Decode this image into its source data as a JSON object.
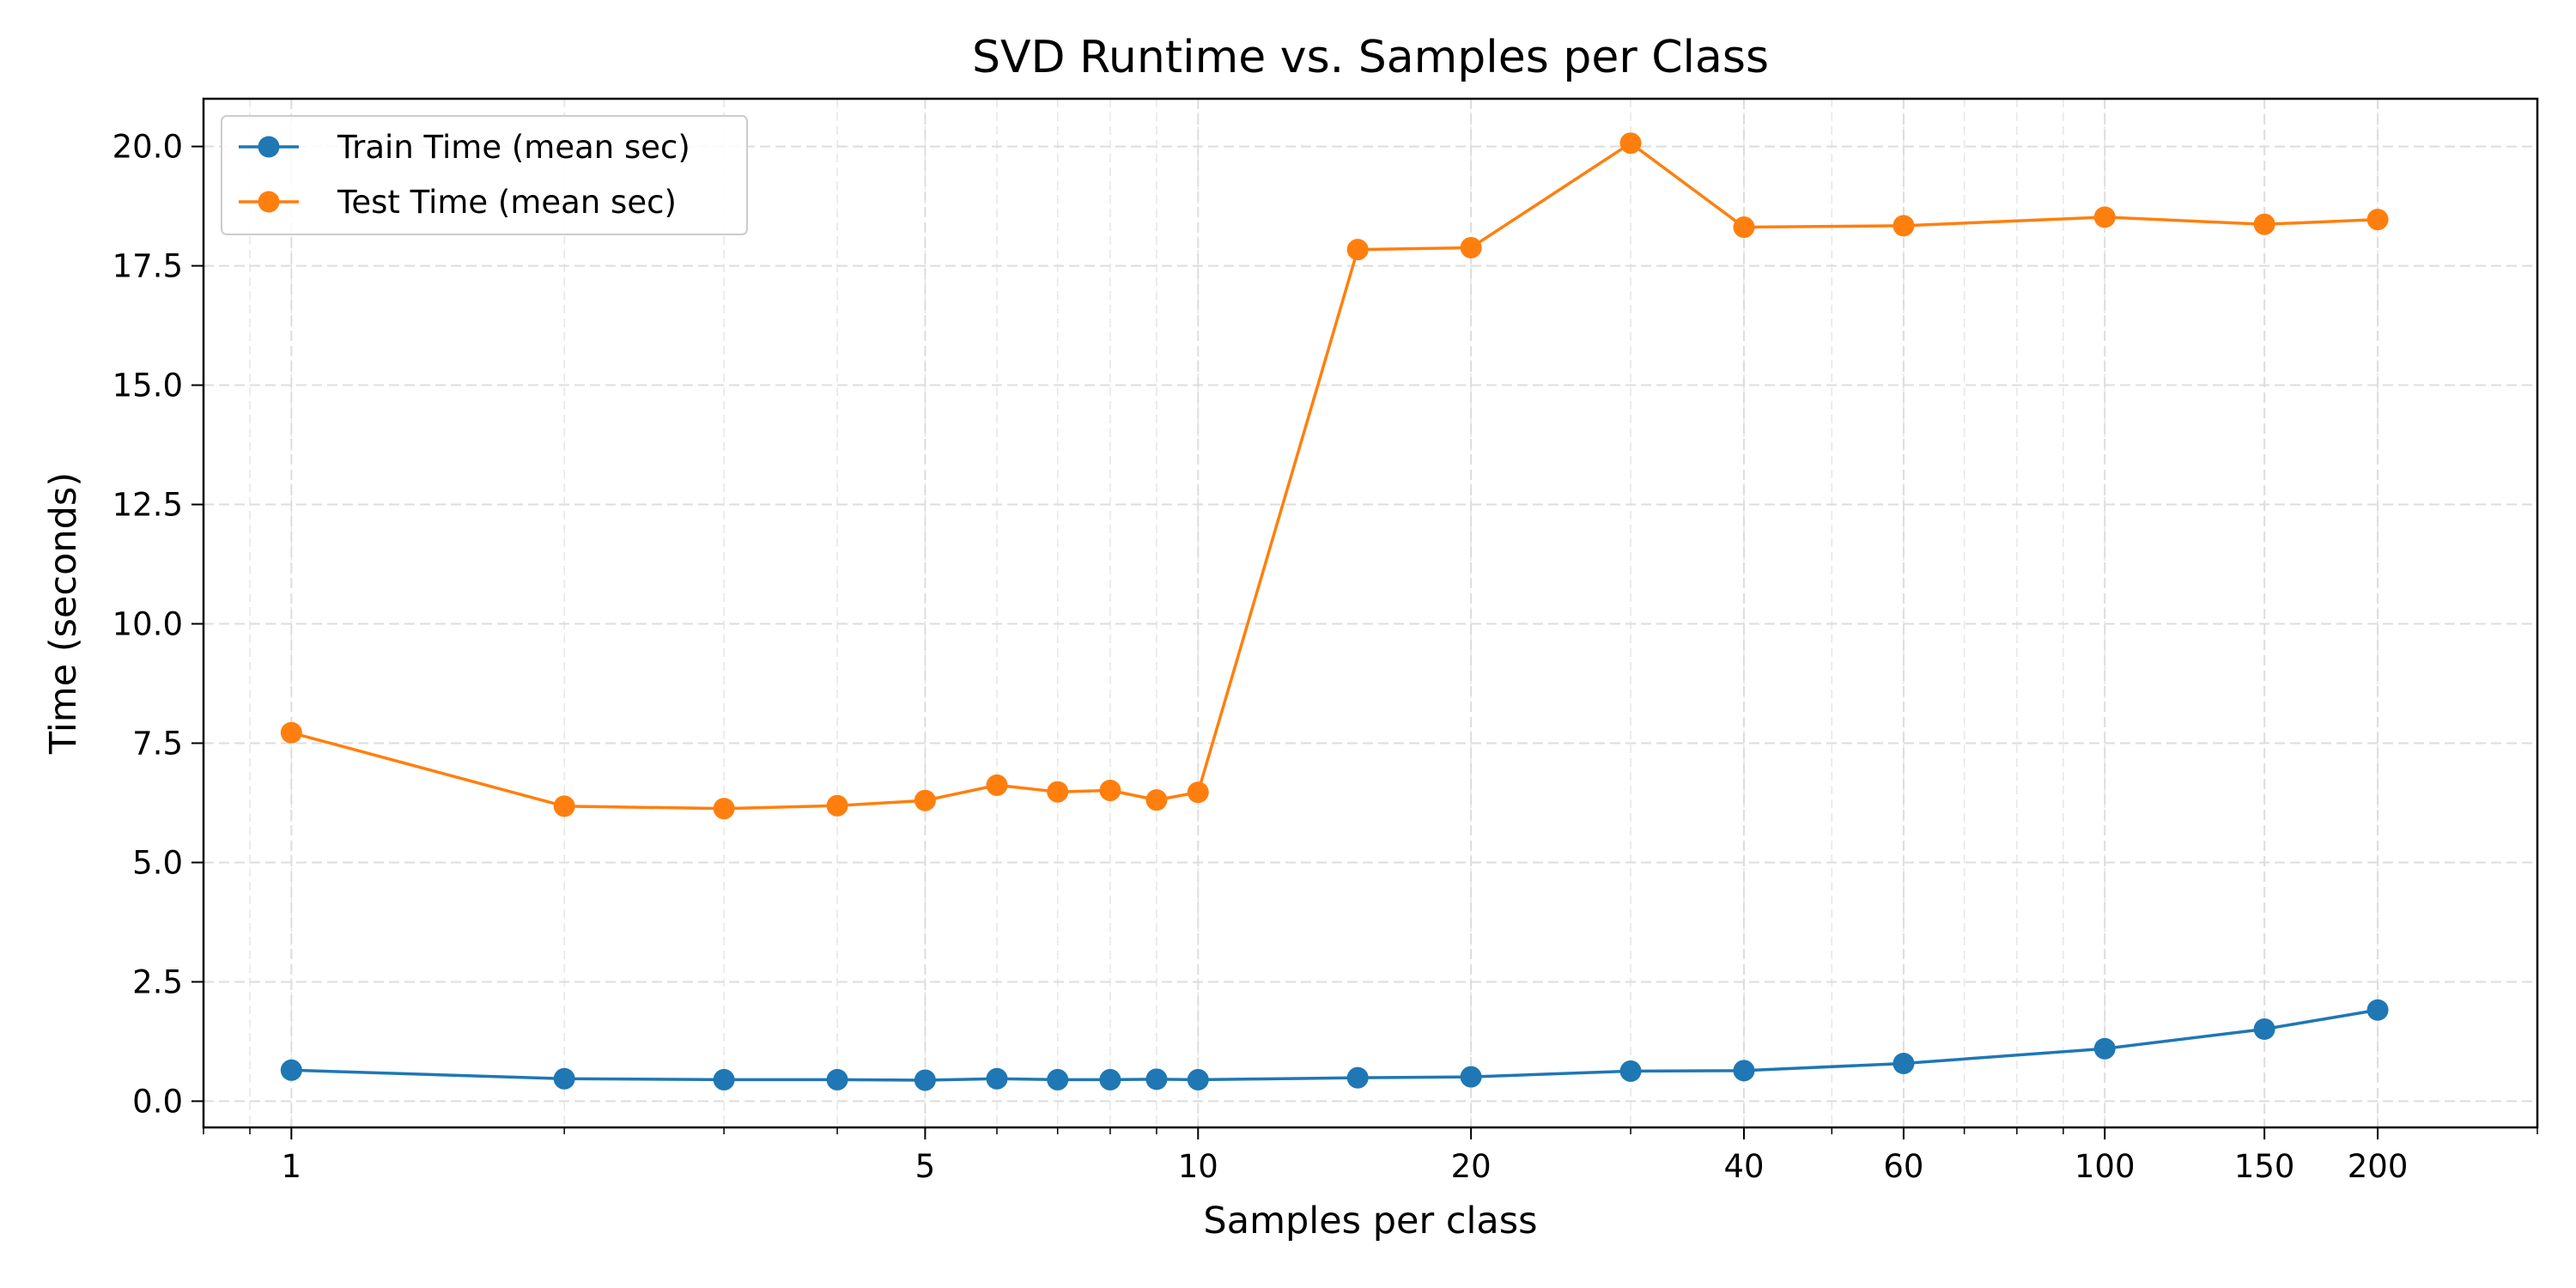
{
  "chart_data": {
    "type": "line",
    "title": "SVD Runtime vs. Samples per Class",
    "xlabel": "Samples per class",
    "ylabel": "Time (seconds)",
    "xscale": "log",
    "xlim": [
      0.8,
      300
    ],
    "ylim": [
      -0.55,
      21.0
    ],
    "xticks": [
      1,
      5,
      10,
      20,
      40,
      60,
      100,
      150,
      200
    ],
    "yticks": [
      0.0,
      2.5,
      5.0,
      7.5,
      10.0,
      12.5,
      15.0,
      17.5,
      20.0
    ],
    "x": [
      1,
      2,
      3,
      4,
      5,
      6,
      7,
      8,
      9,
      10,
      15,
      20,
      30,
      40,
      60,
      100,
      150,
      200
    ],
    "series": [
      {
        "name": "Train Time (mean sec)",
        "color": "#1f77b4",
        "values": [
          0.65,
          0.47,
          0.45,
          0.45,
          0.44,
          0.47,
          0.45,
          0.45,
          0.46,
          0.45,
          0.49,
          0.51,
          0.63,
          0.64,
          0.79,
          1.1,
          1.51,
          1.91
        ]
      },
      {
        "name": "Test Time (mean sec)",
        "color": "#ff7f0e",
        "values": [
          7.72,
          6.18,
          6.13,
          6.19,
          6.3,
          6.62,
          6.48,
          6.51,
          6.31,
          6.47,
          17.84,
          17.88,
          20.07,
          18.31,
          18.34,
          18.52,
          18.37,
          18.47
        ]
      }
    ],
    "grid": true,
    "legend_position": "top-left"
  }
}
